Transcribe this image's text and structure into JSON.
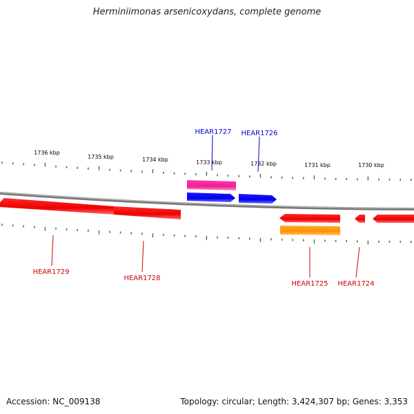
{
  "title": "Herminiimonas arsenicoxydans, complete genome",
  "footer": {
    "accession": "Accession: NC_009138",
    "summary": "Topology: circular; Length: 3,424,307 bp; Genes: 3,353"
  },
  "ruler": {
    "ticks": [
      "1736 kbp",
      "1735 kbp",
      "1734 kbp",
      "1733 kbp",
      "1732 kbp",
      "1731 kbp",
      "1730 kbp"
    ]
  },
  "colors": {
    "backbone": "#8a8a8a",
    "tick": "#2a8a2a",
    "gene_forward": "#0000ff",
    "gene_reverse": "#ff0000",
    "feature_magenta": "#ff33aa",
    "feature_orange": "#ff9900",
    "label_forward": "#0000cc",
    "label_reverse": "#cc0000"
  },
  "genes": [
    {
      "name": "HEAR1729",
      "strand": "reverse"
    },
    {
      "name": "HEAR1728",
      "strand": "reverse"
    },
    {
      "name": "HEAR1727",
      "strand": "forward"
    },
    {
      "name": "HEAR1726",
      "strand": "forward"
    },
    {
      "name": "HEAR1725",
      "strand": "reverse"
    },
    {
      "name": "HEAR1724",
      "strand": "reverse"
    }
  ]
}
